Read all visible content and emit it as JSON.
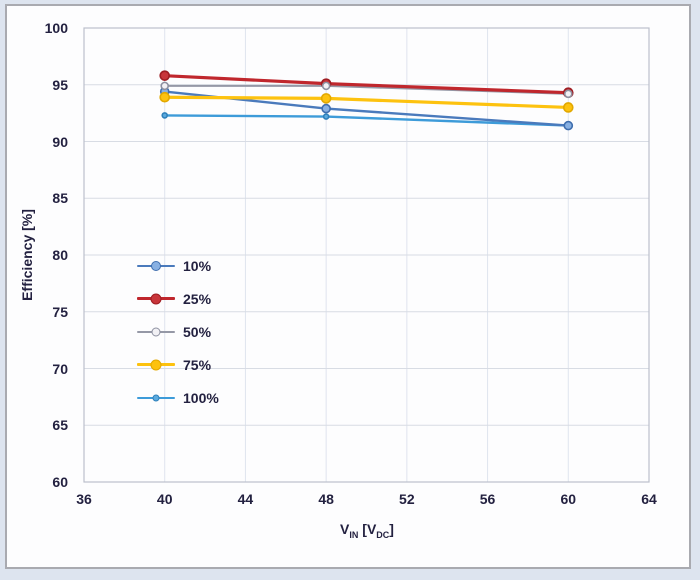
{
  "page": {
    "outer_bg": "#dde4ef",
    "frame_bg": "#fdfdfe",
    "frame_border": "#a9aab0",
    "text_color": "#232140"
  },
  "chart_data": {
    "type": "line",
    "title": "",
    "xlabel_parts": {
      "v": "V",
      "sub1": "IN",
      "mid": " [V",
      "sub2": "DC",
      "end": "]"
    },
    "ylabel": "Efficiency [%]",
    "x": [
      40,
      48,
      60
    ],
    "xticks": [
      36,
      40,
      44,
      48,
      52,
      56,
      60,
      64
    ],
    "yticks": [
      100,
      95,
      90,
      85,
      80,
      75,
      70,
      65,
      60
    ],
    "xlim": [
      36,
      64
    ],
    "ylim": [
      60,
      100
    ],
    "grid": "on",
    "legend_position": "inside-left",
    "series": [
      {
        "name": "10%",
        "values": [
          94.4,
          92.9,
          91.4
        ],
        "line_color": "#4a7abc",
        "line_width": 2.4,
        "marker_fill": "#88b0e2",
        "marker_ring": "#3f6eae",
        "marker_radius": 4
      },
      {
        "name": "25%",
        "values": [
          95.8,
          95.1,
          94.3
        ],
        "line_color": "#c0272d",
        "line_width": 3.2,
        "marker_fill": "#c8353a",
        "marker_ring": "#9e1c22",
        "marker_radius": 4.5
      },
      {
        "name": "50%",
        "values": [
          94.9,
          94.9,
          94.2
        ],
        "line_color": "#9598a6",
        "line_width": 2,
        "marker_fill": "#f2f1f5",
        "marker_ring": "#8d90a0",
        "marker_radius": 3.5
      },
      {
        "name": "75%",
        "values": [
          93.9,
          93.8,
          93.0
        ],
        "line_color": "#fdc20f",
        "line_width": 3.2,
        "marker_fill": "#fdc20f",
        "marker_ring": "#e2a800",
        "marker_radius": 4.5
      },
      {
        "name": "100%",
        "values": [
          92.3,
          92.2,
          91.4
        ],
        "line_color": "#3d9bd9",
        "line_width": 2.4,
        "marker_fill": "#5caade",
        "marker_ring": "#2f81bb",
        "marker_radius": 2.5
      }
    ],
    "plot_border_color": "#bcc0cb",
    "grid_color_h": "#d8dce4",
    "grid_color_v": "#dfe4ee"
  }
}
